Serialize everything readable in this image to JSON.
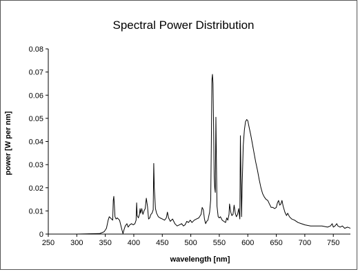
{
  "chart_data": {
    "type": "line",
    "title": "Spectral Power Distribution",
    "xlabel": "wavelength [nm]",
    "ylabel": "power [W per nm]",
    "xlim": [
      250,
      780
    ],
    "ylim": [
      0,
      0.08
    ],
    "x_ticks": [
      "250",
      "300",
      "350",
      "400",
      "450",
      "500",
      "550",
      "600",
      "650",
      "700",
      "750"
    ],
    "y_ticks": [
      "0",
      "0.01",
      "0.02",
      "0.03",
      "0.04",
      "0.05",
      "0.06",
      "0.07",
      "0.08"
    ],
    "grid": false,
    "legend": "none",
    "line_color": "#000000",
    "series": [
      {
        "points": [
          [
            250,
            0
          ],
          [
            300,
            0
          ],
          [
            340,
            0.0002
          ],
          [
            348,
            0.001
          ],
          [
            352,
            0.0025
          ],
          [
            355,
            0.006
          ],
          [
            357,
            0.0075
          ],
          [
            359,
            0.007
          ],
          [
            361,
            0.0065
          ],
          [
            363,
            0.006
          ],
          [
            364,
            0.0145
          ],
          [
            365,
            0.0163
          ],
          [
            366,
            0.012
          ],
          [
            367,
            0.0075
          ],
          [
            369,
            0.0065
          ],
          [
            371,
            0.007
          ],
          [
            373,
            0.0065
          ],
          [
            375,
            0.006
          ],
          [
            377,
            0.004
          ],
          [
            379,
            0.002
          ],
          [
            381,
            0.0002
          ],
          [
            383,
            0.002
          ],
          [
            385,
            0.0035
          ],
          [
            388,
            0.0045
          ],
          [
            390,
            0.003
          ],
          [
            393,
            0.004
          ],
          [
            396,
            0.0045
          ],
          [
            399,
            0.004
          ],
          [
            402,
            0.0045
          ],
          [
            404,
            0.006
          ],
          [
            405,
            0.0135
          ],
          [
            406,
            0.008
          ],
          [
            408,
            0.007
          ],
          [
            410,
            0.0085
          ],
          [
            411,
            0.011
          ],
          [
            412,
            0.009
          ],
          [
            414,
            0.011
          ],
          [
            416,
            0.0085
          ],
          [
            418,
            0.01
          ],
          [
            420,
            0.011
          ],
          [
            422,
            0.0155
          ],
          [
            424,
            0.012
          ],
          [
            426,
            0.0065
          ],
          [
            428,
            0.007
          ],
          [
            430,
            0.0085
          ],
          [
            432,
            0.009
          ],
          [
            434,
            0.0105
          ],
          [
            435,
            0.0305
          ],
          [
            436,
            0.02
          ],
          [
            438,
            0.011
          ],
          [
            440,
            0.009
          ],
          [
            443,
            0.0075
          ],
          [
            446,
            0.007
          ],
          [
            450,
            0.0065
          ],
          [
            454,
            0.006
          ],
          [
            457,
            0.007
          ],
          [
            459,
            0.0095
          ],
          [
            461,
            0.007
          ],
          [
            464,
            0.0055
          ],
          [
            468,
            0.0065
          ],
          [
            472,
            0.0045
          ],
          [
            476,
            0.0035
          ],
          [
            480,
            0.004
          ],
          [
            484,
            0.0045
          ],
          [
            487,
            0.0035
          ],
          [
            490,
            0.004
          ],
          [
            493,
            0.0055
          ],
          [
            496,
            0.005
          ],
          [
            499,
            0.006
          ],
          [
            502,
            0.005
          ],
          [
            506,
            0.006
          ],
          [
            510,
            0.0065
          ],
          [
            514,
            0.007
          ],
          [
            518,
            0.0085
          ],
          [
            520,
            0.0115
          ],
          [
            522,
            0.0105
          ],
          [
            524,
            0.0065
          ],
          [
            526,
            0.0045
          ],
          [
            528,
            0.0055
          ],
          [
            530,
            0.006
          ],
          [
            533,
            0.0095
          ],
          [
            535,
            0.015
          ],
          [
            536,
            0.04
          ],
          [
            537,
            0.0665
          ],
          [
            538,
            0.069
          ],
          [
            539,
            0.065
          ],
          [
            540,
            0.045
          ],
          [
            541,
            0.025
          ],
          [
            542,
            0.02
          ],
          [
            543,
            0.018
          ],
          [
            544,
            0.0505
          ],
          [
            545,
            0.03
          ],
          [
            546,
            0.012
          ],
          [
            548,
            0.0075
          ],
          [
            550,
            0.007
          ],
          [
            552,
            0.0075
          ],
          [
            555,
            0.006
          ],
          [
            558,
            0.0055
          ],
          [
            561,
            0.005
          ],
          [
            563,
            0.007
          ],
          [
            565,
            0.006
          ],
          [
            567,
            0.0085
          ],
          [
            568,
            0.013
          ],
          [
            570,
            0.0095
          ],
          [
            572,
            0.008
          ],
          [
            574,
            0.0085
          ],
          [
            576,
            0.0125
          ],
          [
            578,
            0.009
          ],
          [
            580,
            0.0075
          ],
          [
            582,
            0.0085
          ],
          [
            584,
            0.011
          ],
          [
            586,
            0.0065
          ],
          [
            587,
            0.0425
          ],
          [
            588,
            0.025
          ],
          [
            589,
            0.0075
          ],
          [
            590,
            0.02
          ],
          [
            592,
            0.038
          ],
          [
            594,
            0.045
          ],
          [
            596,
            0.0485
          ],
          [
            598,
            0.0495
          ],
          [
            600,
            0.049
          ],
          [
            602,
            0.0465
          ],
          [
            605,
            0.043
          ],
          [
            608,
            0.039
          ],
          [
            611,
            0.035
          ],
          [
            614,
            0.031
          ],
          [
            617,
            0.0275
          ],
          [
            620,
            0.0235
          ],
          [
            623,
            0.02
          ],
          [
            626,
            0.0175
          ],
          [
            629,
            0.016
          ],
          [
            632,
            0.015
          ],
          [
            635,
            0.0145
          ],
          [
            638,
            0.013
          ],
          [
            641,
            0.0115
          ],
          [
            644,
            0.0115
          ],
          [
            647,
            0.011
          ],
          [
            650,
            0.0115
          ],
          [
            652,
            0.0135
          ],
          [
            654,
            0.0145
          ],
          [
            656,
            0.0125
          ],
          [
            658,
            0.013
          ],
          [
            660,
            0.0145
          ],
          [
            662,
            0.012
          ],
          [
            665,
            0.0095
          ],
          [
            668,
            0.008
          ],
          [
            670,
            0.009
          ],
          [
            673,
            0.0075
          ],
          [
            677,
            0.0065
          ],
          [
            682,
            0.006
          ],
          [
            688,
            0.005
          ],
          [
            694,
            0.0045
          ],
          [
            700,
            0.004
          ],
          [
            710,
            0.0035
          ],
          [
            720,
            0.0035
          ],
          [
            730,
            0.0035
          ],
          [
            740,
            0.003
          ],
          [
            745,
            0.0035
          ],
          [
            748,
            0.0045
          ],
          [
            750,
            0.003
          ],
          [
            753,
            0.0035
          ],
          [
            756,
            0.0045
          ],
          [
            758,
            0.0035
          ],
          [
            762,
            0.003
          ],
          [
            766,
            0.0035
          ],
          [
            770,
            0.0025
          ],
          [
            775,
            0.003
          ],
          [
            780,
            0.0025
          ]
        ]
      }
    ]
  }
}
